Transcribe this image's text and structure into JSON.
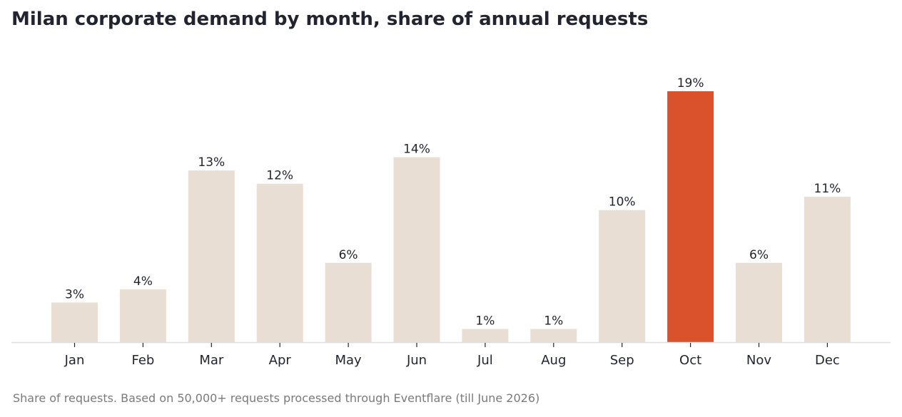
{
  "title": "Milan corporate demand by month, share of annual requests",
  "footnote": "Share of requests. Based on 50,000+ requests processed through Eventflare (till June 2026)",
  "chart_data": {
    "type": "bar",
    "title": "Milan corporate demand by month, share of annual requests",
    "categories": [
      "Jan",
      "Feb",
      "Mar",
      "Apr",
      "May",
      "Jun",
      "Jul",
      "Aug",
      "Sep",
      "Oct",
      "Nov",
      "Dec"
    ],
    "values": [
      3,
      4,
      13,
      12,
      6,
      14,
      1,
      1,
      10,
      19,
      6,
      11
    ],
    "value_labels": [
      "3%",
      "4%",
      "13%",
      "12%",
      "6%",
      "14%",
      "1%",
      "1%",
      "10%",
      "19%",
      "6%",
      "11%"
    ],
    "unit": "%",
    "highlight_category": "Oct",
    "colors": {
      "bar": "#e8ded4",
      "highlight": "#d9522b",
      "axis": "#dddddd",
      "text": "#22252f"
    },
    "ylim": [
      0,
      19
    ],
    "grid": false,
    "legend": "none"
  }
}
